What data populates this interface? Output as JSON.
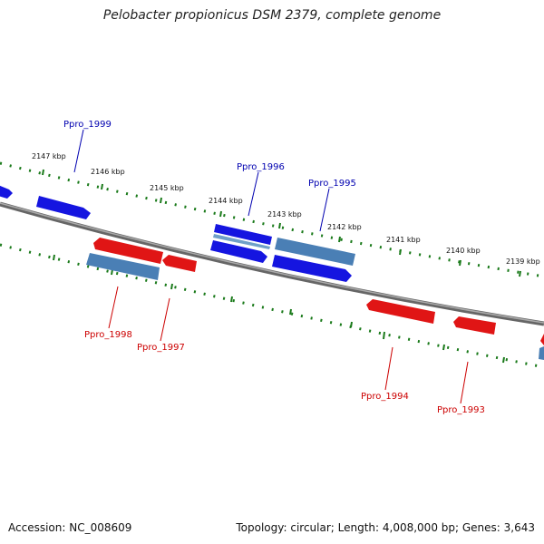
{
  "header": {
    "title": "Pelobacter propionicus DSM 2379, complete genome"
  },
  "footer": {
    "accession": "Accession: NC_008609",
    "summary": "Topology: circular; Length: 4,008,000 bp; Genes: 3,643"
  },
  "colors": {
    "forward_gene": "#1515e0",
    "reverse_gene": "#e01515",
    "highlight_gene": "#4a7fb5",
    "ticks": "#1a7a1a",
    "backbone": "#777777",
    "forward_label": "#0000b0",
    "reverse_label": "#cc0000"
  },
  "scale_labels": [
    "2147 kbp",
    "2146 kbp",
    "2145 kbp",
    "2144 kbp",
    "2143 kbp",
    "2142 kbp",
    "2141 kbp",
    "2140 kbp",
    "2139 kbp"
  ],
  "gene_labels": {
    "forward": [
      "Ppro_1999",
      "Ppro_1996",
      "Ppro_1995"
    ],
    "reverse": [
      "Ppro_1998",
      "Ppro_1997",
      "Ppro_1994",
      "Ppro_1993"
    ]
  }
}
